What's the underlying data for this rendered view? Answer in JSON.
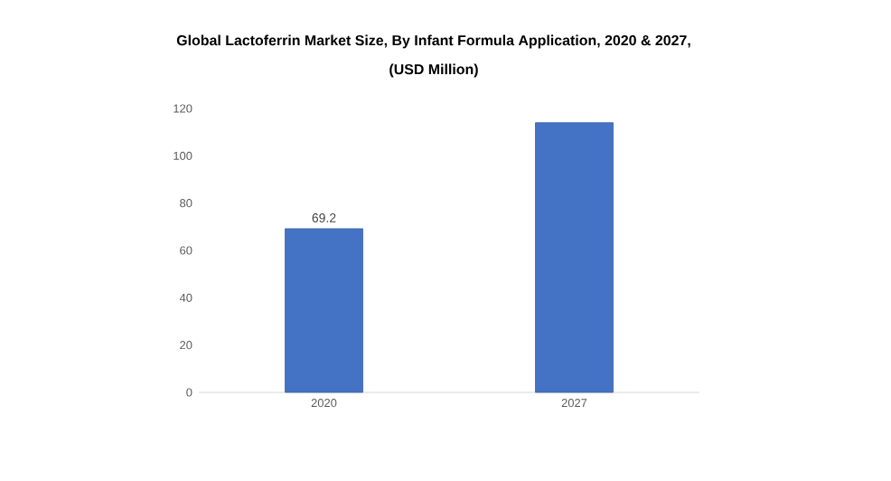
{
  "chart_data": {
    "type": "bar",
    "title": "Global Lactoferrin Market Size, By Infant Formula Application, 2020 & 2027,",
    "subtitle": "(USD Million)",
    "categories": [
      "2020",
      "2027"
    ],
    "values": [
      69.2,
      114
    ],
    "value_labels": [
      "69.2",
      null
    ],
    "color": "#4472c4",
    "ylim": [
      0,
      120
    ],
    "yticks": [
      0,
      20,
      40,
      60,
      80,
      100,
      120
    ],
    "grid": false
  }
}
